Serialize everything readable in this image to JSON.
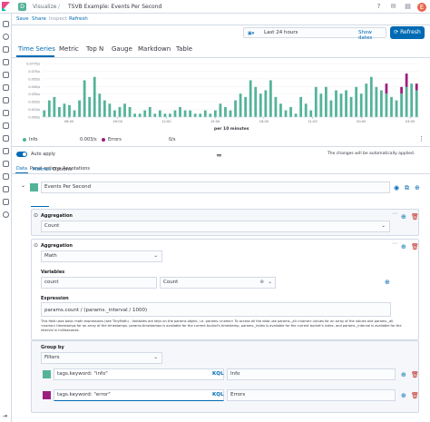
{
  "breadcrumbs": {
    "app": "Visualize",
    "title": "TSVB Example: Events Per Second",
    "badge": "D"
  },
  "toolbar": {
    "save": "Save",
    "share": "Share",
    "inspect": "Inspect",
    "refresh": "Refresh"
  },
  "timepicker": {
    "range": "Last 24 hours",
    "show_dates": "Show dates",
    "refresh_button": "Refresh"
  },
  "viz_tabs": [
    "Time Series",
    "Metric",
    "Top N",
    "Gauge",
    "Markdown",
    "Table"
  ],
  "chart_data": {
    "type": "bar",
    "xlabel": "per 10 minutes",
    "x_ticks": [
      "06:00",
      "09:00",
      "12:00",
      "15:00",
      "18:00",
      "21:00",
      "00:00",
      "03:00"
    ],
    "y_ticks": [
      "0.0775/s",
      "0.075/s",
      "0.055/s",
      "0.045/s",
      "0.035/s",
      "0.025/s",
      "0.015/s",
      "0.005/s"
    ],
    "series": [
      {
        "name": "Info",
        "color": "#54b399",
        "values": [
          0.01,
          0.025,
          0.03,
          0.015,
          0.02,
          0.018,
          0.01,
          0.025,
          0.055,
          0.03,
          0.06,
          0.035,
          0.025,
          0.02,
          0.01,
          0.015,
          0.02,
          0.015,
          0.005,
          0.005,
          0.01,
          0.015,
          0.005,
          0.01,
          0.005,
          0.005,
          0.01,
          0.015,
          0.01,
          0.01,
          0.005,
          0.005,
          0.01,
          0.005,
          0.01,
          0.02,
          0.015,
          0.01,
          0.025,
          0.035,
          0.03,
          0.055,
          0.045,
          0.035,
          0.04,
          0.055,
          0.03,
          0.02,
          0.01,
          0.015,
          0.005,
          0.03,
          0.02,
          0.01,
          0.045,
          0.035,
          0.045,
          0.025,
          0.04,
          0.035,
          0.04,
          0.03,
          0.045,
          0.035,
          0.05,
          0.06,
          0.045,
          0.04,
          0.035,
          0.03,
          0.025,
          0.035,
          0.045,
          0.05,
          0.04
        ]
      },
      {
        "name": "Errors",
        "color": "#9c1f80",
        "values": [
          0,
          0,
          0,
          0,
          0,
          0,
          0,
          0,
          0,
          0,
          0,
          0,
          0,
          0,
          0,
          0,
          0,
          0,
          0,
          0,
          0,
          0,
          0,
          0,
          0,
          0,
          0,
          0,
          0,
          0,
          0,
          0,
          0,
          0,
          0,
          0,
          0,
          0,
          0,
          0,
          0,
          0,
          0,
          0,
          0,
          0,
          0,
          0,
          0,
          0,
          0,
          0,
          0,
          0,
          0,
          0,
          0,
          0,
          0,
          0,
          0,
          0,
          0,
          0,
          0,
          0,
          0,
          0,
          0.015,
          0,
          0,
          0.01,
          0.02,
          0,
          0.01
        ]
      }
    ],
    "legend": [
      {
        "name": "Info",
        "value": "0.003/s"
      },
      {
        "name": "Errors",
        "value": "0/s"
      }
    ]
  },
  "options": {
    "auto_apply": "Auto apply",
    "auto_apply_note": "The changes will be automatically applied."
  },
  "editor_tabs": [
    "Data",
    "Panel options",
    "Annotations"
  ],
  "series_panel": {
    "label": "Events Per Second",
    "subtabs": [
      "Metrics",
      "Options"
    ],
    "agg1": {
      "title": "Aggregation",
      "value": "Count"
    },
    "agg2": {
      "title": "Aggregation",
      "value": "Math",
      "variables_label": "Variables",
      "var_name": "count",
      "var_metric": "Count",
      "expression_label": "Expression",
      "expression": "params.count / (params._interval / 1000)",
      "help": "This field uses basic math expressions (see TinyMath) - Variables are keys on the params object, i.e. params.<name> To access all the data use params._all.<name>.values for an array of the values and params._all.<name>.timestamps for an array of the timestamps. params.timestamps is available for the current bucket's timestamp, params._index is available for the current bucket's index, and params._interval is available for the interval in milliseconds."
    },
    "group": {
      "title": "Group by",
      "value": "Filters",
      "filters": [
        {
          "query": "tags.keyword: \"info\"",
          "label": "Info",
          "color": "#54b399",
          "kql": "KQL"
        },
        {
          "query": "tags.keyword: \"error\"",
          "label": "Errors",
          "color": "#9c1f80",
          "kql": "KQL"
        }
      ]
    }
  }
}
